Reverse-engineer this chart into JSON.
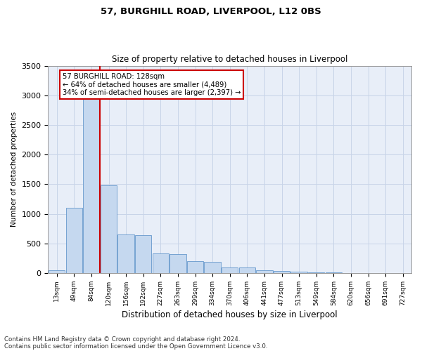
{
  "title_line1": "57, BURGHILL ROAD, LIVERPOOL, L12 0BS",
  "title_line2": "Size of property relative to detached houses in Liverpool",
  "xlabel": "Distribution of detached houses by size in Liverpool",
  "ylabel": "Number of detached properties",
  "annotation_line1": "57 BURGHILL ROAD: 128sqm",
  "annotation_line2": "← 64% of detached houses are smaller (4,489)",
  "annotation_line3": "34% of semi-detached houses are larger (2,397) →",
  "footnote1": "Contains HM Land Registry data © Crown copyright and database right 2024.",
  "footnote2": "Contains public sector information licensed under the Open Government Licence v3.0.",
  "bin_labels": [
    "13sqm",
    "49sqm",
    "84sqm",
    "120sqm",
    "156sqm",
    "192sqm",
    "227sqm",
    "263sqm",
    "299sqm",
    "334sqm",
    "370sqm",
    "406sqm",
    "441sqm",
    "477sqm",
    "513sqm",
    "549sqm",
    "584sqm",
    "620sqm",
    "656sqm",
    "691sqm",
    "727sqm"
  ],
  "bar_values": [
    50,
    1100,
    3050,
    1480,
    650,
    640,
    330,
    320,
    200,
    190,
    100,
    95,
    50,
    30,
    20,
    10,
    8,
    5,
    4,
    3,
    2
  ],
  "bar_color": "#c5d8ef",
  "bar_edge_color": "#6699cc",
  "vline_color": "#cc0000",
  "vline_x_index": 3,
  "ylim": [
    0,
    3500
  ],
  "yticks": [
    0,
    500,
    1000,
    1500,
    2000,
    2500,
    3000,
    3500
  ],
  "annotation_box_facecolor": "#ffffff",
  "annotation_box_edgecolor": "#cc0000",
  "grid_color": "#c8d4e8",
  "plot_bg_color": "#e8eef8",
  "fig_bg_color": "#ffffff"
}
